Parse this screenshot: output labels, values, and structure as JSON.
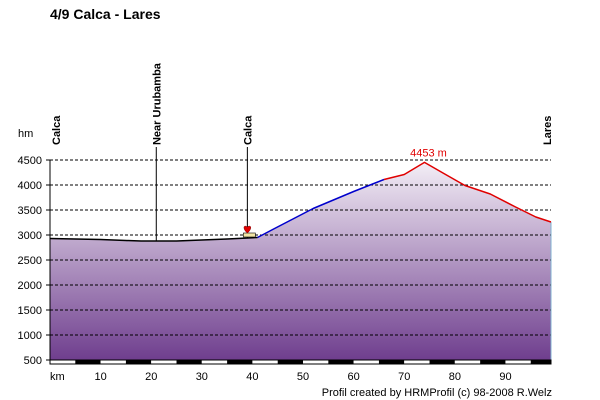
{
  "chart_data": {
    "type": "area",
    "title": "4/9 Calca - Lares",
    "ylabel": "hm",
    "xlabel": "km",
    "ylim": [
      500,
      4500
    ],
    "xlim": [
      0,
      99
    ],
    "grid": true,
    "y_ticks": [
      500,
      1000,
      1500,
      2000,
      2500,
      3000,
      3500,
      4000,
      4500
    ],
    "x_ticks": [
      10,
      20,
      30,
      40,
      50,
      60,
      70,
      80,
      90
    ],
    "profile": [
      {
        "km": 0,
        "elev": 2930
      },
      {
        "km": 5,
        "elev": 2920
      },
      {
        "km": 10,
        "elev": 2910
      },
      {
        "km": 15,
        "elev": 2890
      },
      {
        "km": 18,
        "elev": 2880
      },
      {
        "km": 25,
        "elev": 2880
      },
      {
        "km": 30,
        "elev": 2900
      },
      {
        "km": 35,
        "elev": 2920
      },
      {
        "km": 39,
        "elev": 2940
      },
      {
        "km": 41,
        "elev": 2950
      },
      {
        "km": 44,
        "elev": 3110
      },
      {
        "km": 48,
        "elev": 3320
      },
      {
        "km": 52,
        "elev": 3530
      },
      {
        "km": 56,
        "elev": 3700
      },
      {
        "km": 60,
        "elev": 3870
      },
      {
        "km": 64,
        "elev": 4030
      },
      {
        "km": 66,
        "elev": 4110
      },
      {
        "km": 70,
        "elev": 4210
      },
      {
        "km": 74,
        "elev": 4453
      },
      {
        "km": 78,
        "elev": 4220
      },
      {
        "km": 82,
        "elev": 3990
      },
      {
        "km": 87,
        "elev": 3820
      },
      {
        "km": 92,
        "elev": 3560
      },
      {
        "km": 96,
        "elev": 3360
      },
      {
        "km": 99,
        "elev": 3260
      }
    ],
    "segments": [
      {
        "from_km": 0,
        "to_km": 41,
        "color": "#000000"
      },
      {
        "from_km": 41,
        "to_km": 66,
        "color": "#0000cc"
      },
      {
        "from_km": 66,
        "to_km": 99,
        "color": "#e00000"
      }
    ],
    "peak": {
      "km": 74,
      "elev": 4453,
      "label": "4453 m",
      "color": "#e00000"
    },
    "waypoints": [
      {
        "km": 0,
        "label": "Calca",
        "line": false
      },
      {
        "km": 21,
        "label": "Near Urubamba",
        "line": true
      },
      {
        "km": 39,
        "label": "Calca",
        "line": true
      },
      {
        "km": 99,
        "label": "Lares",
        "line": false
      }
    ],
    "marker": {
      "km": 39,
      "icon": "heart-icon",
      "color": "#e00000"
    },
    "credit": "Profil created by HRMProfil (c) 98-2008 R.Welz",
    "colors": {
      "fill_top": "#f3eef6",
      "fill_bottom": "#6f3e8e",
      "grid": "#000000"
    }
  }
}
